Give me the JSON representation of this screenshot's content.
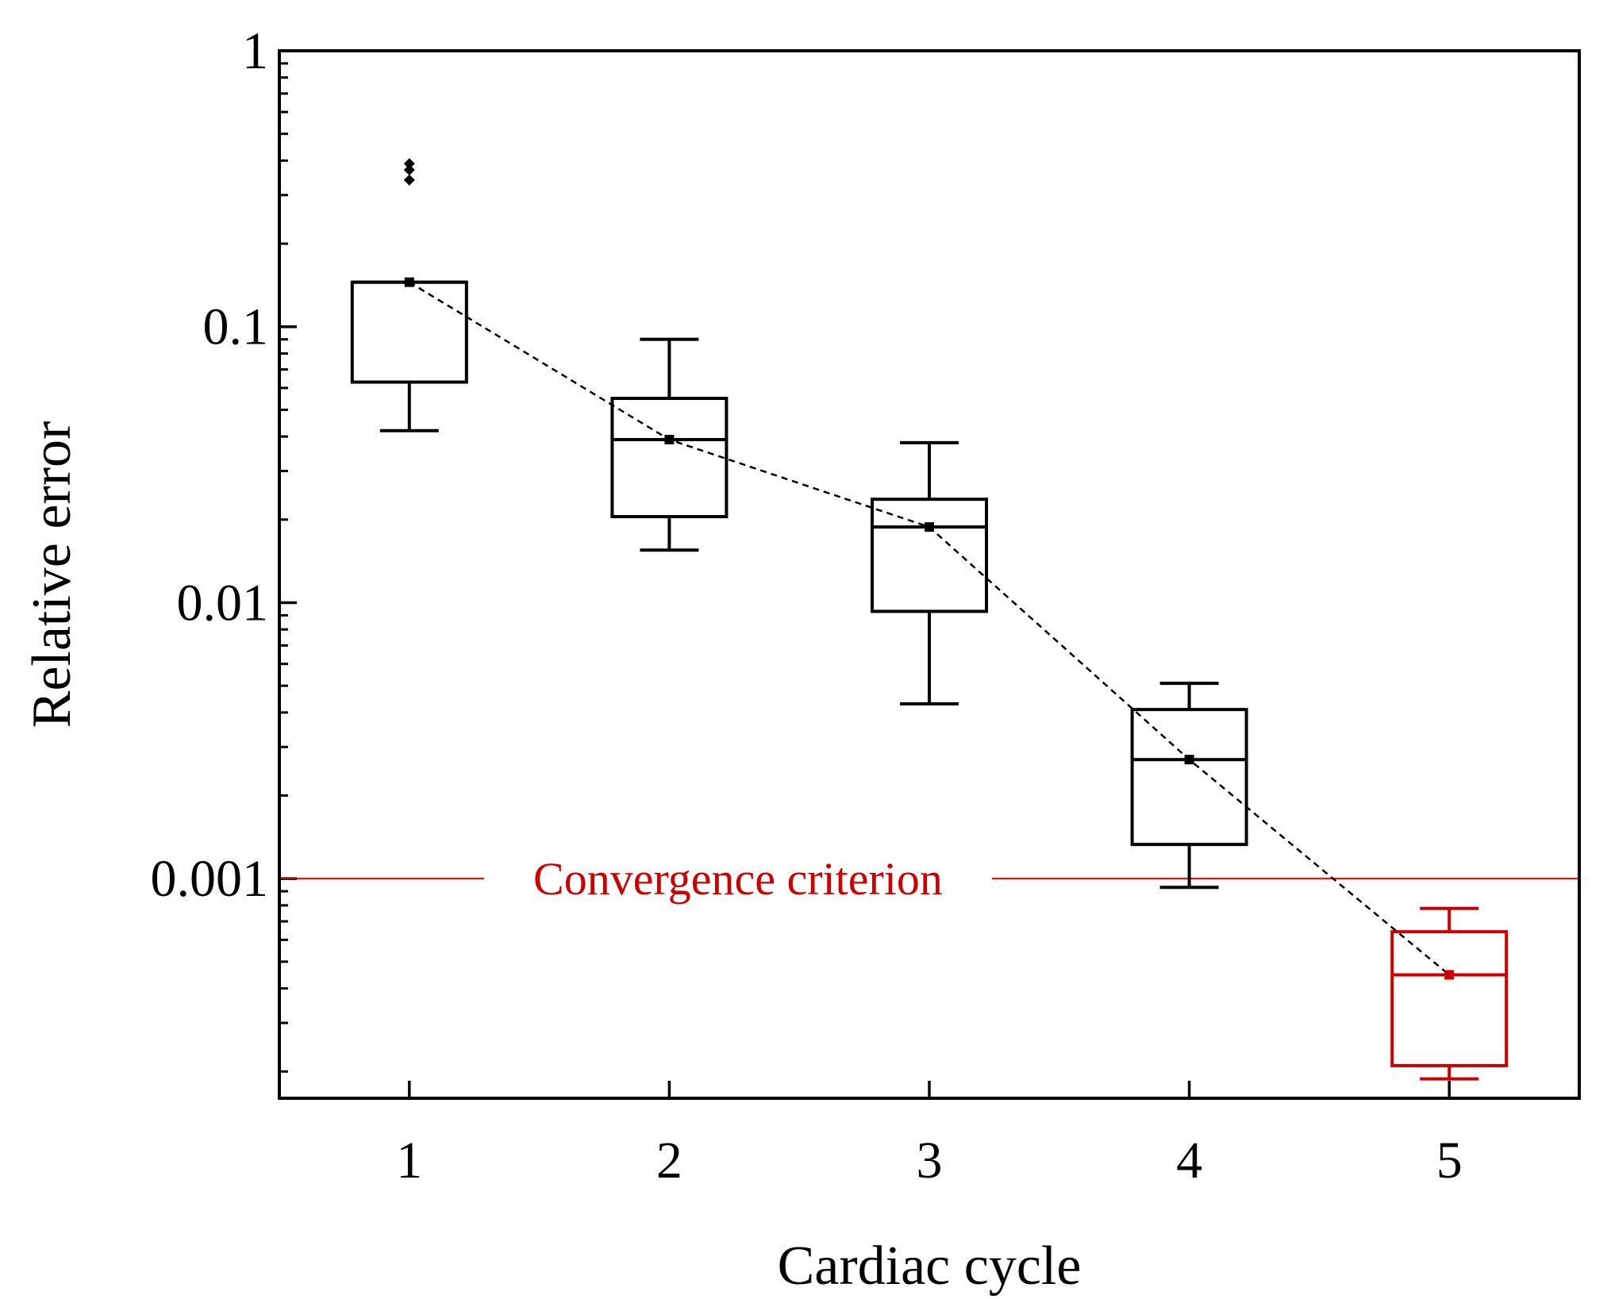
{
  "chart_data": {
    "type": "box",
    "title": "",
    "xlabel": "Cardiac cycle",
    "ylabel": "Relative error",
    "yscale": "log",
    "ylim": [
      0.00016,
      1
    ],
    "xlim": [
      0.5,
      5.5
    ],
    "x_ticks": [
      1,
      2,
      3,
      4,
      5
    ],
    "x_tick_labels": [
      "1",
      "2",
      "3",
      "4",
      "5"
    ],
    "y_ticks": [
      0.001,
      0.01,
      0.1,
      1
    ],
    "y_tick_labels": [
      "0.001",
      "0.01",
      "0.1",
      "1"
    ],
    "boxes": [
      {
        "x": 1,
        "whisker_low": 0.042,
        "q1": 0.063,
        "median": 0.145,
        "q3": 0.145,
        "whisker_high": 0.145,
        "mean": 0.145,
        "outliers": [
          0.34,
          0.37,
          0.39
        ],
        "color": "#000000"
      },
      {
        "x": 2,
        "whisker_low": 0.0155,
        "q1": 0.0205,
        "median": 0.039,
        "q3": 0.055,
        "whisker_high": 0.09,
        "mean": 0.039,
        "outliers": [],
        "color": "#000000"
      },
      {
        "x": 3,
        "whisker_low": 0.0043,
        "q1": 0.0093,
        "median": 0.0188,
        "q3": 0.0237,
        "whisker_high": 0.038,
        "mean": 0.0188,
        "outliers": [],
        "color": "#000000"
      },
      {
        "x": 4,
        "whisker_low": 0.00093,
        "q1": 0.00133,
        "median": 0.0027,
        "q3": 0.0041,
        "whisker_high": 0.0051,
        "mean": 0.0027,
        "outliers": [],
        "color": "#000000"
      },
      {
        "x": 5,
        "whisker_low": 0.000188,
        "q1": 0.00021,
        "median": 0.000448,
        "q3": 0.000642,
        "whisker_high": 0.00078,
        "mean": 0.000448,
        "outliers": [],
        "color": "#cc0000"
      }
    ],
    "mean_trend": {
      "style": "dashed",
      "color": "#000000",
      "points": [
        [
          1,
          0.145
        ],
        [
          2,
          0.039
        ],
        [
          3,
          0.0188
        ],
        [
          4,
          0.0027
        ],
        [
          5,
          0.000448
        ]
      ]
    },
    "reference_line": {
      "y": 0.001,
      "label": "Convergence criterion",
      "color": "#cc0000"
    }
  }
}
